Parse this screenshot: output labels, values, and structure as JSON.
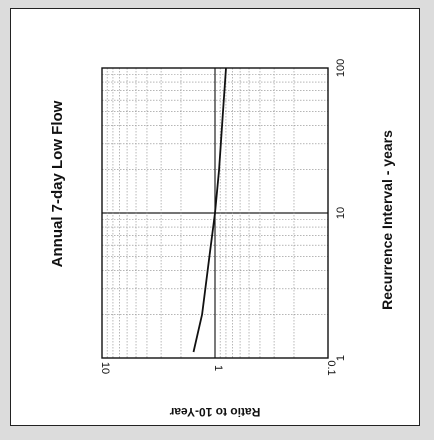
{
  "chart_data": {
    "type": "line",
    "title": "Annual 7-day Low Flow",
    "xlabel": "Recurrence Interval - years",
    "ylabel": "Ratio to 10-Year",
    "x_scale": "log",
    "y_scale": "log",
    "xlim": [
      1,
      100
    ],
    "ylim": [
      0.1,
      10
    ],
    "x_ticks": [
      {
        "value": 1,
        "label": "1"
      },
      {
        "value": 10,
        "label": "10"
      },
      {
        "value": 100,
        "label": "100"
      }
    ],
    "y_ticks": [
      {
        "value": 10,
        "label": "10"
      },
      {
        "value": 1,
        "label": "1"
      },
      {
        "value": 0.1,
        "label": "0.1"
      }
    ],
    "grid": true,
    "rotated": "chart printed rotated 90 degrees counter-clockwise",
    "series": [
      {
        "x": [
          1.1,
          2,
          5,
          10,
          20,
          50,
          100
        ],
        "y": [
          1.55,
          1.3,
          1.12,
          1.0,
          0.92,
          0.85,
          0.8
        ]
      }
    ]
  },
  "colors": {
    "line": "#111111",
    "grid": "#8a8a8a",
    "frame": "#111111"
  }
}
